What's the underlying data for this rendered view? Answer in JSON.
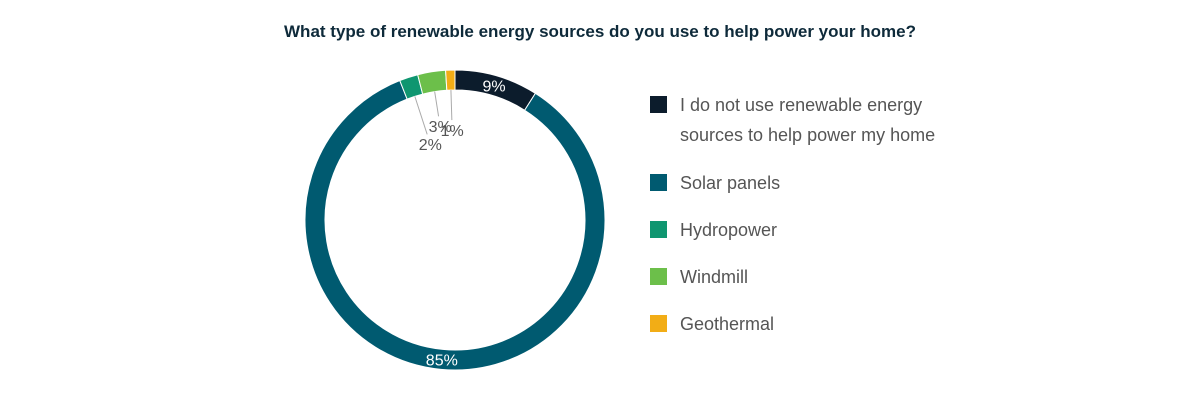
{
  "chart_data": {
    "type": "pie",
    "title": "What type of renewable energy sources do you use to help power your home?",
    "categories": [
      "I do not use renewable energy sources to help power my home",
      "Solar panels",
      "Hydropower",
      "Windmill",
      "Geothermal"
    ],
    "values": [
      9,
      85,
      2,
      3,
      1
    ],
    "labels": [
      "9%",
      "85%",
      "2%",
      "3%",
      "1%"
    ],
    "colors": [
      "#0c1c2c",
      "#005a70",
      "#0f9670",
      "#6cbf4a",
      "#f2ad16"
    ],
    "legend_position": "right"
  },
  "legend": {
    "items": [
      {
        "label": "I do not use renewable energy sources to help power my home",
        "color": "#0c1c2c"
      },
      {
        "label": "Solar panels",
        "color": "#005a70"
      },
      {
        "label": "Hydropower",
        "color": "#0f9670"
      },
      {
        "label": "Windmill",
        "color": "#6cbf4a"
      },
      {
        "label": "Geothermal",
        "color": "#f2ad16"
      }
    ]
  }
}
